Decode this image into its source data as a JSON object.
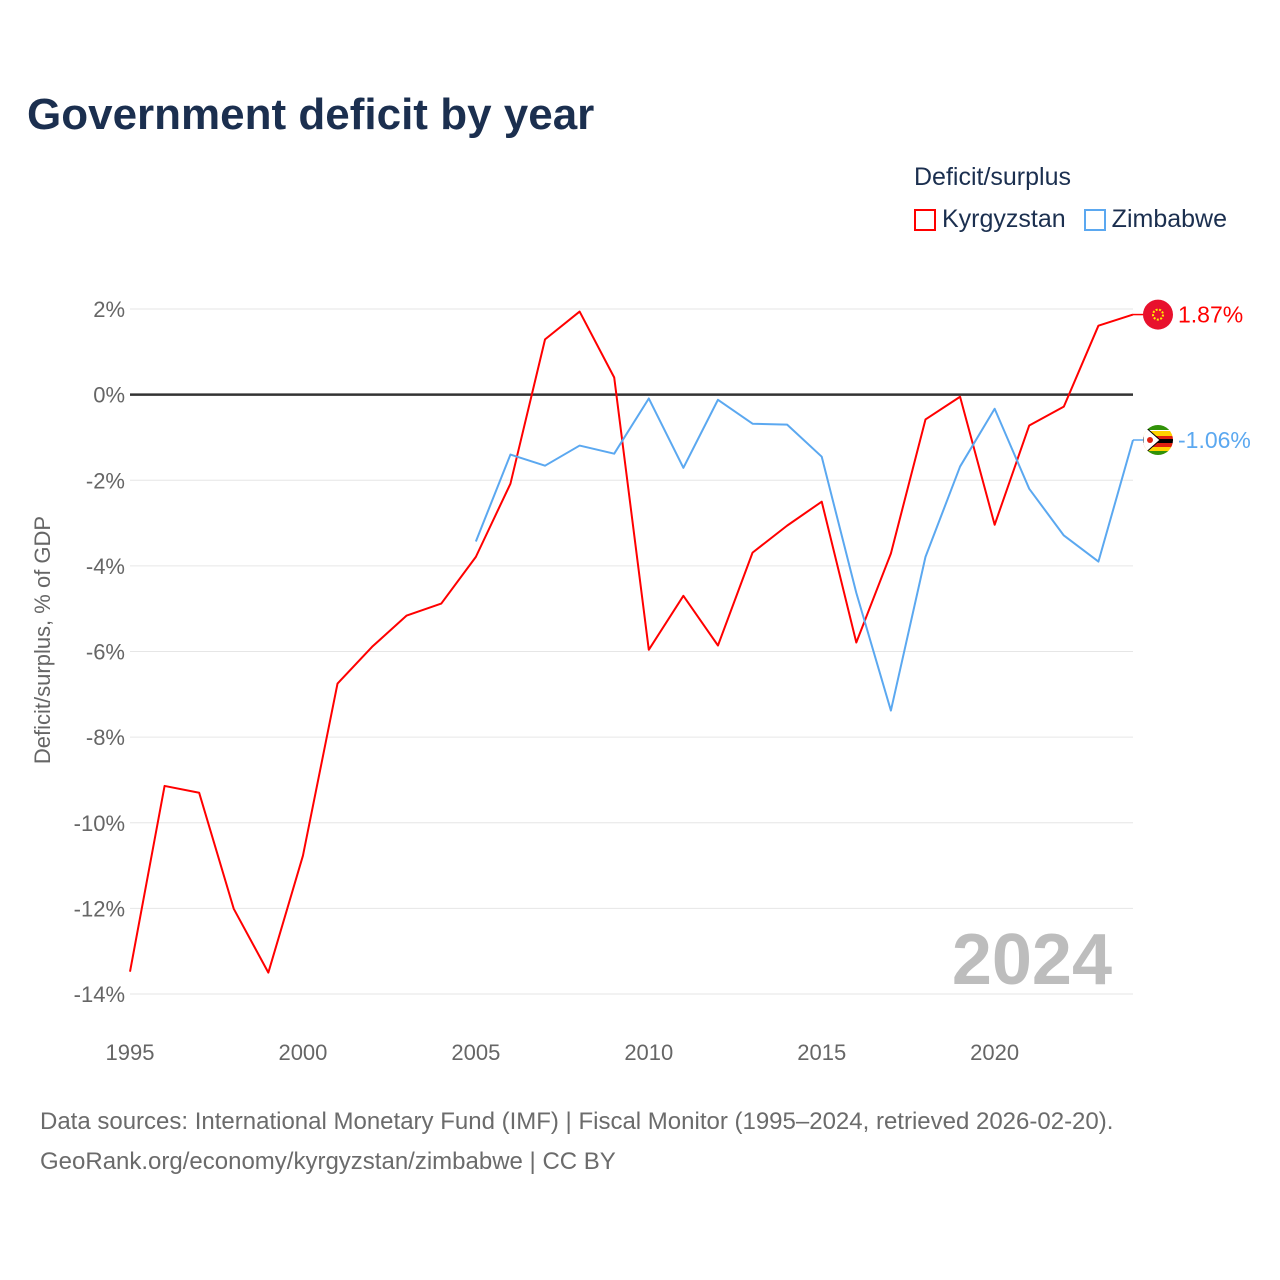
{
  "title": "Government deficit by year",
  "legend": {
    "title": "Deficit/surplus",
    "items": [
      {
        "name": "Kyrgyzstan",
        "color": "#ff0000"
      },
      {
        "name": "Zimbabwe",
        "color": "#5ba8f0"
      }
    ]
  },
  "footer": {
    "sources": "Data sources: International Monetary Fund (IMF) | Fiscal Monitor (1995–2024, retrieved 2026-02-20).",
    "link": "GeoRank.org/economy/kyrgyzstan/zimbabwe | CC BY"
  },
  "chart_data": {
    "type": "line",
    "title": "Government deficit by year",
    "ylabel": "Deficit/surplus, % of GDP",
    "xlabel": "",
    "xlim": [
      1995,
      2024
    ],
    "ylim": [
      -14,
      2
    ],
    "xticks": [
      1995,
      2000,
      2005,
      2010,
      2015,
      2020
    ],
    "yticks": [
      2,
      0,
      -2,
      -4,
      -6,
      -8,
      -10,
      -12,
      -14
    ],
    "ytick_labels": [
      "2%",
      "0%",
      "-2%",
      "-4%",
      "-6%",
      "-8%",
      "-10%",
      "-12%",
      "-14%"
    ],
    "watermark_year": "2024",
    "grid": true,
    "series": [
      {
        "name": "Kyrgyzstan",
        "color": "#ff0000",
        "end_label": "1.87%",
        "x": [
          1995,
          1996,
          1997,
          1998,
          1999,
          2000,
          2001,
          2002,
          2003,
          2004,
          2005,
          2006,
          2007,
          2008,
          2009,
          2010,
          2011,
          2012,
          2013,
          2014,
          2015,
          2016,
          2017,
          2018,
          2019,
          2020,
          2021,
          2022,
          2023,
          2024
        ],
        "values": [
          -13.48,
          -9.14,
          -9.3,
          -12.01,
          -13.5,
          -10.77,
          -6.75,
          -5.89,
          -5.16,
          -4.88,
          -3.79,
          -2.08,
          1.29,
          1.94,
          0.4,
          -5.96,
          -4.7,
          -5.86,
          -3.69,
          -3.06,
          -2.5,
          -5.79,
          -3.71,
          -0.58,
          -0.05,
          -3.04,
          -0.72,
          -0.28,
          1.61,
          1.87
        ]
      },
      {
        "name": "Zimbabwe",
        "color": "#5ba8f0",
        "end_label": "-1.06%",
        "x": [
          2005,
          2006,
          2007,
          2008,
          2009,
          2010,
          2011,
          2012,
          2013,
          2014,
          2015,
          2016,
          2017,
          2018,
          2019,
          2020,
          2021,
          2022,
          2023,
          2024
        ],
        "values": [
          -3.43,
          -1.4,
          -1.66,
          -1.19,
          -1.38,
          -0.09,
          -1.71,
          -0.12,
          -0.68,
          -0.7,
          -1.45,
          -4.63,
          -7.38,
          -3.79,
          -1.68,
          -0.33,
          -2.2,
          -3.29,
          -3.9,
          -1.06
        ]
      }
    ]
  }
}
